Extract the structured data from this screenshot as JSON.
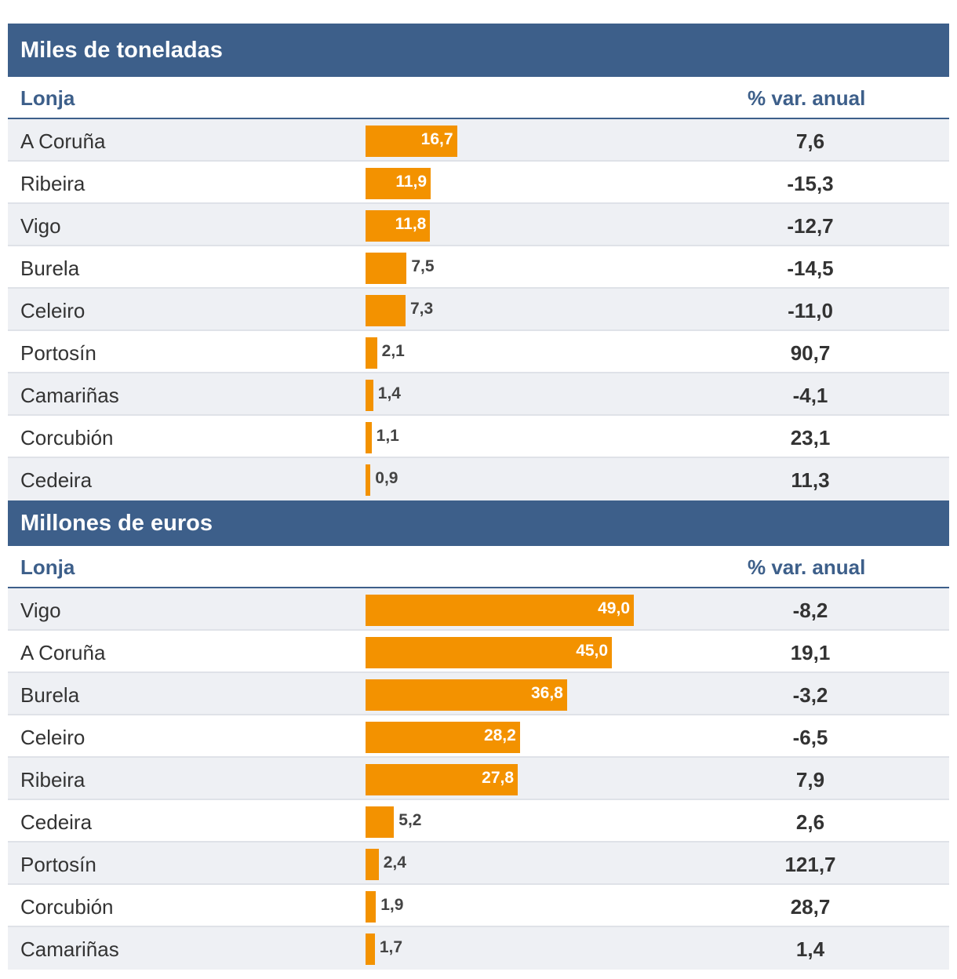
{
  "chart_data": [
    {
      "type": "bar",
      "title": "Miles de toneladas",
      "column_headers": {
        "name": "Lonja",
        "variation": "% var. anual"
      },
      "categories": [
        "A Coruña",
        "Ribeira",
        "Vigo",
        "Burela",
        "Celeiro",
        "Portosín",
        "Camariñas",
        "Corcubión",
        "Cedeira"
      ],
      "values": [
        16.7,
        11.9,
        11.8,
        7.5,
        7.3,
        2.1,
        1.4,
        1.1,
        0.9
      ],
      "value_labels": [
        "16,7",
        "11,9",
        "11,8",
        "7,5",
        "7,3",
        "2,1",
        "1,4",
        "1,1",
        "0,9"
      ],
      "variation_labels": [
        "7,6",
        "-15,3",
        "-12,7",
        "-14,5",
        "-11,0",
        "90,7",
        "-4,1",
        "23,1",
        "11,3"
      ],
      "orientation": "horizontal",
      "xlim": [
        0,
        49.0
      ],
      "color": "#f39200"
    },
    {
      "type": "bar",
      "title": "Millones de euros",
      "column_headers": {
        "name": "Lonja",
        "variation": "% var. anual"
      },
      "categories": [
        "Vigo",
        "A Coruña",
        "Burela",
        "Celeiro",
        "Ribeira",
        "Cedeira",
        "Portosín",
        "Corcubión",
        "Camariñas"
      ],
      "values": [
        49.0,
        45.0,
        36.8,
        28.2,
        27.8,
        5.2,
        2.4,
        1.9,
        1.7
      ],
      "value_labels": [
        "49,0",
        "45,0",
        "36,8",
        "28,2",
        "27,8",
        "5,2",
        "2,4",
        "1,9",
        "1,7"
      ],
      "variation_labels": [
        "-8,2",
        "19,1",
        "-3,2",
        "-6,5",
        "7,9",
        "2,6",
        "121,7",
        "28,7",
        "1,4"
      ],
      "orientation": "horizontal",
      "xlim": [
        0,
        49.0
      ],
      "color": "#f39200"
    }
  ],
  "colors": {
    "header_bg": "#3d5f8a",
    "accent": "#3d5f8a",
    "bar": "#f39200",
    "row_alt": "#eef0f4"
  }
}
